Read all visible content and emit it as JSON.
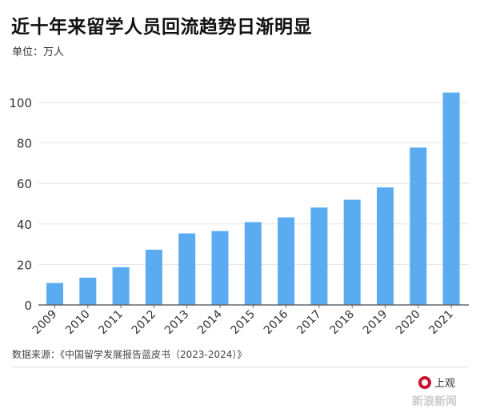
{
  "title": "近十年来留学人员回流趋势日渐明显",
  "unit_label": "单位：万人",
  "source": "数据来源：《中国留学发展报告蓝皮书（2023-2024）》",
  "logo_text": "上观",
  "watermark": "新浪新闻",
  "colors": {
    "bar": "#5aabf0",
    "grid": "#e2e2e2",
    "axis": "#666666"
  },
  "chart_data": {
    "type": "bar",
    "title": "近十年来留学人员回流趋势日渐明显",
    "ylabel": "单位：万人",
    "xlabel": "",
    "categories": [
      "2009",
      "2010",
      "2011",
      "2012",
      "2013",
      "2014",
      "2015",
      "2016",
      "2017",
      "2018",
      "2019",
      "2020",
      "2021"
    ],
    "values": [
      10.83,
      13.48,
      18.62,
      27.29,
      35.35,
      36.48,
      40.91,
      43.25,
      48.09,
      51.94,
      58.03,
      77.7,
      104.9
    ],
    "ylim": [
      0,
      100
    ],
    "yticks": [
      0,
      20,
      40,
      60,
      80,
      100
    ],
    "grid": true,
    "legend": "none"
  }
}
